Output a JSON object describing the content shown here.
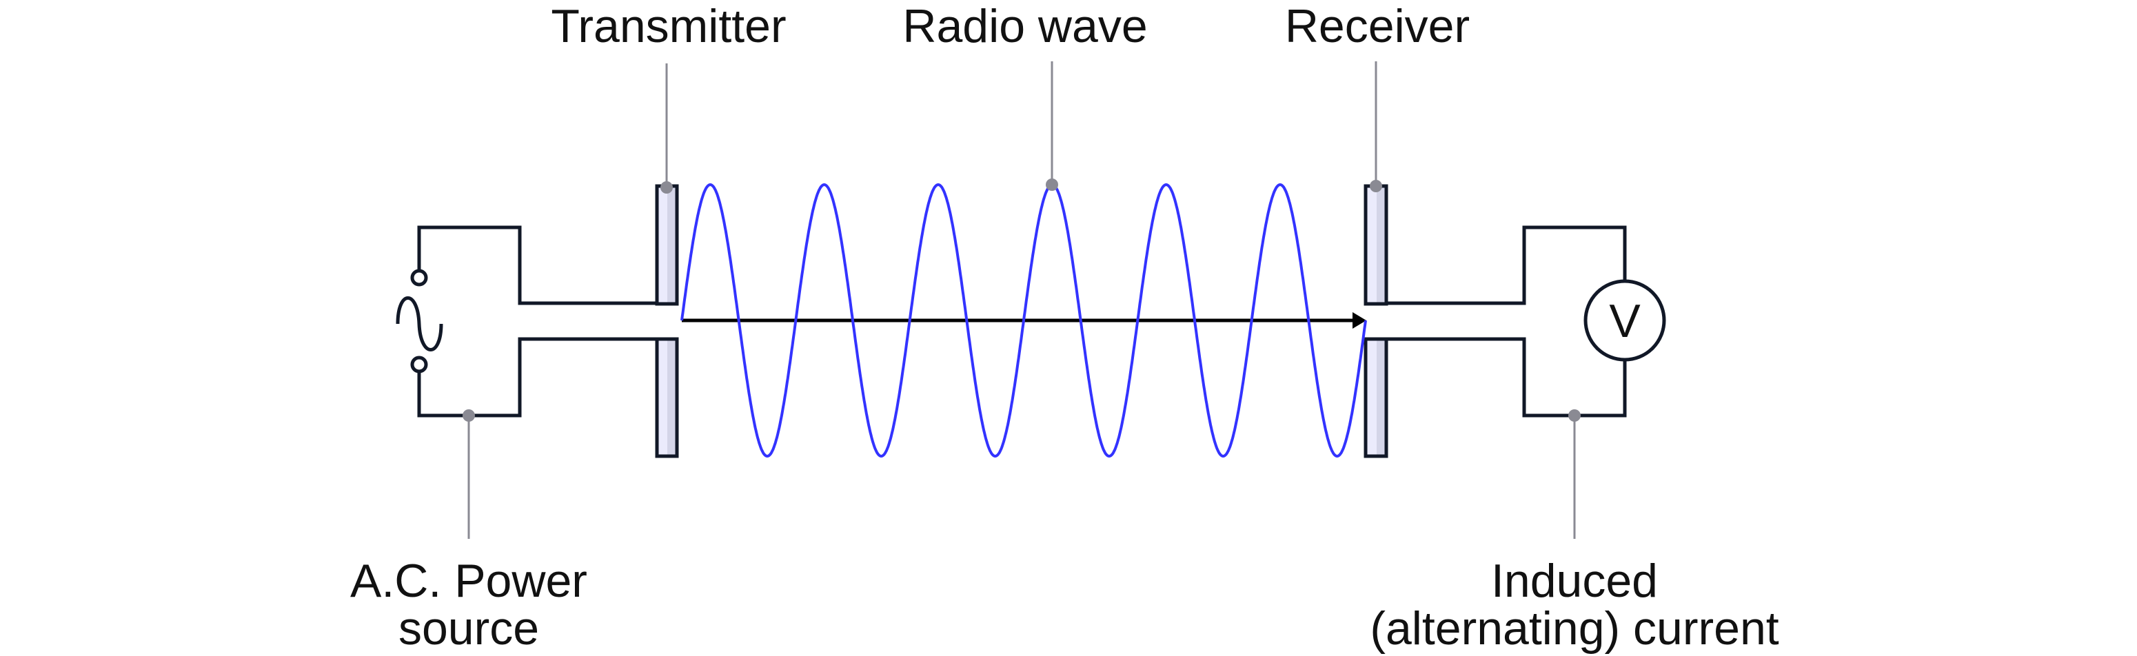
{
  "labels": {
    "transmitter": "Transmitter",
    "radio_wave": "Radio wave",
    "receiver": "Receiver",
    "ac_source_line1": "A.C. Power",
    "ac_source_line2": "source",
    "induced_line1": "Induced",
    "induced_line2": "(alternating) current",
    "voltmeter": "V"
  },
  "wave": {
    "cycles": 6
  },
  "colors": {
    "wave": "#3333ff",
    "wire": "#111827",
    "leader": "#8a8a93",
    "plate_light": "#ebebfc",
    "plate_shade": "#d4d5e8"
  }
}
